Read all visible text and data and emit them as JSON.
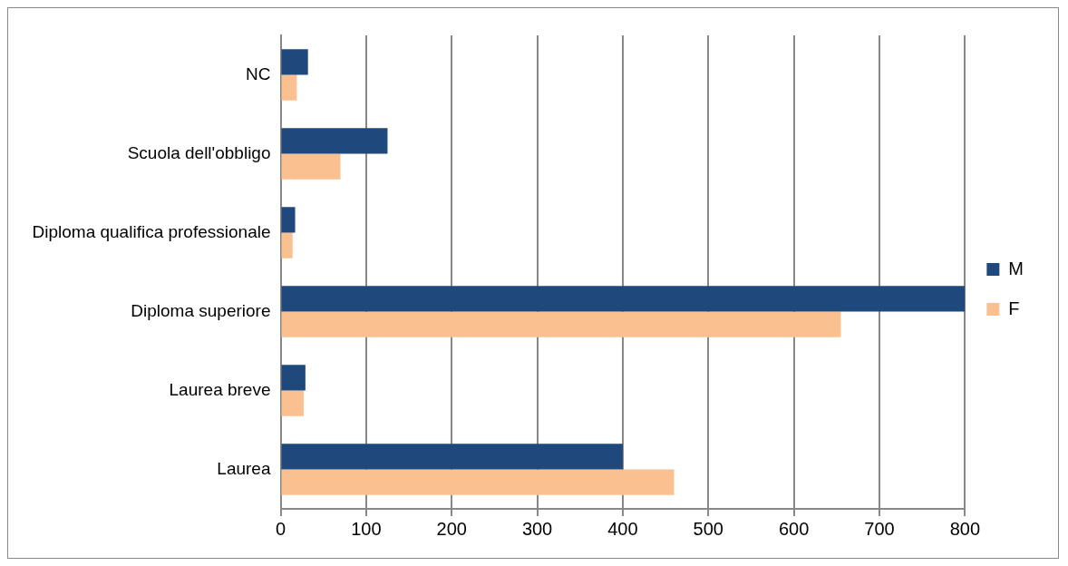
{
  "chart_data": {
    "type": "bar",
    "orientation": "horizontal",
    "categories": [
      "NC",
      "Scuola dell'obbligo",
      "Diploma qualifica professionale",
      "Diploma superiore",
      "Laurea breve",
      "Laurea"
    ],
    "series": [
      {
        "name": "M",
        "color": "#1f497d",
        "values": [
          32,
          125,
          17,
          800,
          29,
          400
        ]
      },
      {
        "name": "F",
        "color": "#fac090",
        "values": [
          19,
          70,
          14,
          655,
          27,
          460
        ]
      }
    ],
    "xlim": [
      0,
      800
    ],
    "xticks": [
      0,
      100,
      200,
      300,
      400,
      500,
      600,
      700,
      800
    ],
    "grid": "x",
    "legend": "right"
  }
}
